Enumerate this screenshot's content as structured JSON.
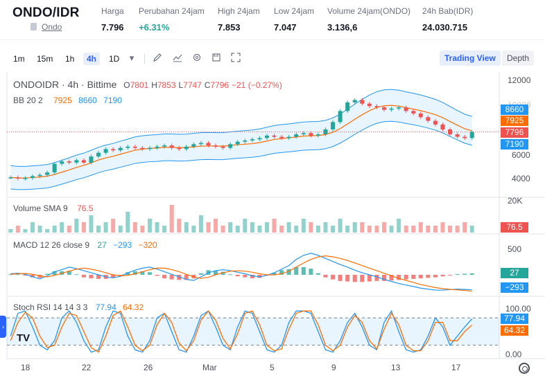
{
  "header": {
    "pair": "ONDO/IDR",
    "coin_link": "Ondo",
    "stats": [
      {
        "label": "Harga",
        "value": "7.796",
        "color": "#131722"
      },
      {
        "label": "Perubahan 24jam",
        "value": "+6.31%",
        "color": "#26a69a"
      },
      {
        "label": "High 24jam",
        "value": "7.853",
        "color": "#131722"
      },
      {
        "label": "Low 24jam",
        "value": "7.047",
        "color": "#131722"
      },
      {
        "label": "Volume 24jam(ONDO)",
        "value": "3.136,6",
        "color": "#131722"
      },
      {
        "label": "24h Bab(IDR)",
        "value": "24.030.715",
        "color": "#131722"
      }
    ]
  },
  "toolbar": {
    "timeframes": [
      "1m",
      "15m",
      "1h",
      "4h",
      "1D"
    ],
    "active_timeframe": "4h",
    "icons": [
      "dropdown-icon",
      "pencil-icon",
      "indicator-icon",
      "gear-icon",
      "save-icon",
      "fullscreen-icon"
    ],
    "trading_view_label": "Trading View",
    "depth_label": "Depth"
  },
  "chart": {
    "legend": {
      "symbol": "ONDOIDR · 4h · Bittime",
      "o_label": "O",
      "o": "7801",
      "h_label": "H",
      "h": "7853",
      "l_label": "L",
      "l": "7747",
      "c_label": "C",
      "c": "7796",
      "change": "−21 (−0.27%)",
      "bb_label": "BB 20 2",
      "bb_mid": "7925",
      "bb_upper": "8660",
      "bb_lower": "7190",
      "vol_label": "Volume SMA 9",
      "vol_val": "76.5",
      "macd_label": "MACD 12 26 close 9",
      "macd_v1": "27",
      "macd_v2": "−293",
      "macd_v3": "−320",
      "stoch_label": "Stoch RSI 14 14 3 3",
      "stoch_k": "77.94",
      "stoch_d": "64.32"
    },
    "price_axis": [
      "12000",
      "8000",
      "6000",
      "4000"
    ],
    "price_axis_covered": "10000",
    "vol_axis": "20K",
    "macd_axis": "500",
    "stoch_axis": [
      "100.00",
      "0.00"
    ],
    "tags": {
      "bb_upper": "8660",
      "bb_mid": "7925",
      "close": "7796",
      "bb_lower": "7190",
      "vol": "76.5",
      "macd": "27",
      "macd_signal": "−293",
      "stoch_k": "77.94",
      "stoch_d": "64.32"
    },
    "x_axis": [
      "18",
      "22",
      "26",
      "Mar",
      "5",
      "9",
      "13",
      "17"
    ],
    "colors": {
      "up": "#26a69a",
      "down": "#ef5350",
      "bb_band": "#2196f3",
      "bb_mid": "#ff6d00",
      "macd_line": "#2196f3",
      "signal_line": "#ff6d00",
      "stoch_k": "#2196f3",
      "stoch_d": "#ff6d00",
      "accent": "#2962ff"
    },
    "price_series": [
      4100,
      4000,
      4050,
      4200,
      4300,
      4500,
      5200,
      5400,
      5300,
      5500,
      5300,
      5800,
      6100,
      6400,
      6300,
      6500,
      6600,
      6500,
      6400,
      6500,
      6600,
      6700,
      6500,
      6400,
      6600,
      6800,
      6900,
      6700,
      6600,
      6500,
      6800,
      7000,
      7100,
      7200,
      7300,
      7500,
      7400,
      7300,
      7400,
      7600,
      7700,
      7500,
      7600,
      8000,
      8600,
      9500,
      10200,
      10400,
      10100,
      9900,
      9800,
      9600,
      9700,
      9800,
      9500,
      9300,
      9000,
      8700,
      8400,
      8000,
      7600,
      7400,
      7300,
      7796
    ],
    "volume_series": [
      1,
      2,
      1,
      3,
      2,
      1,
      2,
      3,
      2,
      4,
      3,
      5,
      2,
      3,
      4,
      2,
      6,
      3,
      2,
      4,
      3,
      2,
      8,
      4,
      3,
      2,
      5,
      3,
      4,
      2,
      3,
      2,
      4,
      3,
      2,
      3,
      4,
      2,
      3,
      2,
      4,
      3,
      2,
      3,
      2,
      4,
      2,
      3,
      3,
      2,
      2,
      3,
      2,
      4,
      2,
      2,
      3,
      2,
      2,
      3,
      2,
      2,
      3,
      2
    ],
    "macd_series": [
      20,
      30,
      10,
      -40,
      -80,
      -20,
      60,
      100,
      150,
      120,
      80,
      40,
      0,
      -40,
      -60,
      -30,
      40,
      90,
      130,
      150,
      110,
      60,
      10,
      -40,
      -90,
      -110,
      -40,
      40,
      80,
      100,
      80,
      50,
      20,
      -20,
      -40,
      -10,
      40,
      110,
      180,
      300,
      380,
      420,
      380,
      320,
      260,
      200,
      150,
      90,
      40,
      0,
      -40,
      -90,
      -130,
      -170,
      -200,
      -230,
      -260,
      -280,
      -300,
      -300,
      -290,
      -280,
      -285,
      -293
    ],
    "signal_series": [
      10,
      20,
      25,
      10,
      -20,
      -40,
      -10,
      30,
      70,
      110,
      130,
      110,
      80,
      40,
      0,
      -20,
      -10,
      20,
      60,
      100,
      130,
      130,
      100,
      60,
      10,
      -40,
      -70,
      -50,
      0,
      40,
      70,
      80,
      70,
      50,
      20,
      0,
      0,
      20,
      70,
      150,
      230,
      300,
      350,
      370,
      350,
      320,
      280,
      230,
      180,
      130,
      80,
      30,
      -20,
      -70,
      -110,
      -150,
      -190,
      -220,
      -250,
      -270,
      -285,
      -295,
      -305,
      -320
    ],
    "stoch_k_series": [
      40,
      90,
      95,
      60,
      20,
      10,
      30,
      80,
      95,
      70,
      30,
      5,
      10,
      60,
      95,
      90,
      40,
      10,
      5,
      30,
      80,
      90,
      50,
      10,
      5,
      40,
      85,
      95,
      60,
      20,
      10,
      60,
      95,
      90,
      50,
      10,
      5,
      20,
      70,
      95,
      95,
      90,
      50,
      10,
      5,
      30,
      70,
      90,
      60,
      20,
      10,
      70,
      95,
      50,
      10,
      5,
      10,
      40,
      80,
      60,
      20,
      40,
      60,
      77.94
    ],
    "stoch_d_series": [
      30,
      70,
      92,
      80,
      40,
      15,
      20,
      60,
      90,
      85,
      50,
      15,
      5,
      40,
      85,
      95,
      60,
      20,
      8,
      20,
      65,
      90,
      70,
      25,
      8,
      30,
      75,
      95,
      75,
      35,
      12,
      45,
      90,
      95,
      65,
      20,
      8,
      12,
      55,
      90,
      95,
      95,
      65,
      20,
      8,
      20,
      60,
      85,
      70,
      30,
      12,
      55,
      90,
      65,
      20,
      8,
      8,
      30,
      70,
      70,
      30,
      30,
      50,
      64.32
    ]
  }
}
